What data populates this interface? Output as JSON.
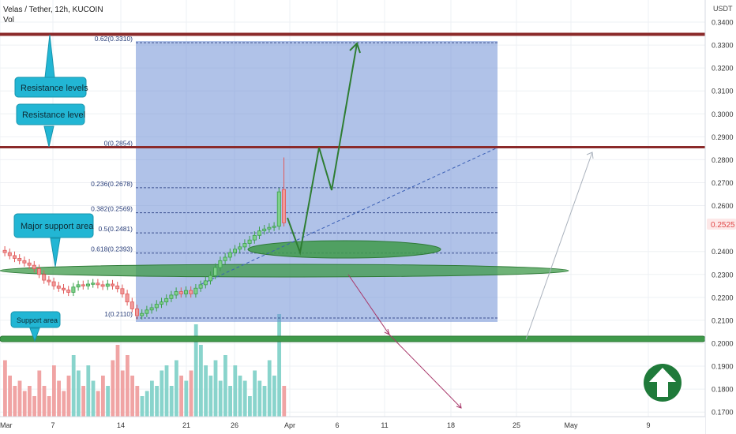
{
  "header": {
    "symbol_line": "Velas / Tether, 12h, KUCOIN",
    "indicator": "Vol",
    "currency": "USDT"
  },
  "price_axis": {
    "ticks": [
      "0.3400",
      "0.3300",
      "0.3200",
      "0.3100",
      "0.3000",
      "0.2900",
      "0.2800",
      "0.2700",
      "0.2600",
      "0.2400",
      "0.2300",
      "0.2200",
      "0.2100",
      "0.2000",
      "0.1900",
      "0.1800",
      "0.1700"
    ],
    "current_price": "0.2525",
    "current_price_color": "#e04848"
  },
  "time_axis": {
    "ticks": [
      "Mar",
      "7",
      "14",
      "21",
      "26",
      "Apr",
      "6",
      "11",
      "18",
      "25",
      "May",
      "9"
    ]
  },
  "fibonacci": {
    "levels": [
      {
        "label": "0.62(0.3310)",
        "price": 0.331
      },
      {
        "label": "0(0.2854)",
        "price": 0.2854
      },
      {
        "label": "0.236(0.2678)",
        "price": 0.2678
      },
      {
        "label": "0.382(0.2569)",
        "price": 0.2569
      },
      {
        "label": "0.5(0.2481)",
        "price": 0.2481
      },
      {
        "label": "0.618(0.2393)",
        "price": 0.2393
      },
      {
        "label": "1(0.2110)",
        "price": 0.211
      }
    ]
  },
  "annotations": {
    "resistance_levels": "Resistance levels",
    "resistance_level": "Resistance level",
    "major_support": "Major support area",
    "support_area": "Support area"
  },
  "colors": {
    "background": "#ffffff",
    "grid": "#eef0f4",
    "fib_box": "#6f8fd6",
    "resistance": "#8b2a2a",
    "support": "#3f9a4a",
    "callout": "#22b6d4",
    "up_candle": "#3aa04a",
    "down_candle": "#e05a5a",
    "vol_up": "#7ccfc6",
    "vol_down": "#ee9a9a",
    "projection": "#2e7d32"
  },
  "chart_data": {
    "type": "candlestick",
    "title": "Velas / Tether, 12h, KUCOIN",
    "ylabel": "USDT",
    "ylim": [
      0.17,
      0.345
    ],
    "resistance_lines": [
      0.3345,
      0.2858
    ],
    "support_zones": [
      0.2315,
      0.2025
    ],
    "candles": [
      {
        "o": 0.2405,
        "c": 0.2395
      },
      {
        "o": 0.2395,
        "c": 0.2382
      },
      {
        "o": 0.2382,
        "c": 0.237
      },
      {
        "o": 0.237,
        "c": 0.236
      },
      {
        "o": 0.236,
        "c": 0.235
      },
      {
        "o": 0.235,
        "c": 0.234
      },
      {
        "o": 0.234,
        "c": 0.2325
      },
      {
        "o": 0.2325,
        "c": 0.23
      },
      {
        "o": 0.23,
        "c": 0.2275
      },
      {
        "o": 0.2275,
        "c": 0.2268
      },
      {
        "o": 0.2268,
        "c": 0.225
      },
      {
        "o": 0.225,
        "c": 0.224
      },
      {
        "o": 0.224,
        "c": 0.2232
      },
      {
        "o": 0.2232,
        "c": 0.2222
      },
      {
        "o": 0.2222,
        "c": 0.2245
      },
      {
        "o": 0.2245,
        "c": 0.2255
      },
      {
        "o": 0.2255,
        "c": 0.225
      },
      {
        "o": 0.225,
        "c": 0.2258
      },
      {
        "o": 0.2258,
        "c": 0.2262
      },
      {
        "o": 0.2262,
        "c": 0.2255
      },
      {
        "o": 0.2255,
        "c": 0.2248
      },
      {
        "o": 0.2248,
        "c": 0.2258
      },
      {
        "o": 0.2258,
        "c": 0.225
      },
      {
        "o": 0.225,
        "c": 0.2238
      },
      {
        "o": 0.2238,
        "c": 0.2215
      },
      {
        "o": 0.2215,
        "c": 0.218
      },
      {
        "o": 0.218,
        "c": 0.215
      },
      {
        "o": 0.215,
        "c": 0.212
      },
      {
        "o": 0.212,
        "c": 0.213
      },
      {
        "o": 0.213,
        "c": 0.2145
      },
      {
        "o": 0.2145,
        "c": 0.2155
      },
      {
        "o": 0.2155,
        "c": 0.217
      },
      {
        "o": 0.217,
        "c": 0.218
      },
      {
        "o": 0.218,
        "c": 0.2195
      },
      {
        "o": 0.2195,
        "c": 0.221
      },
      {
        "o": 0.221,
        "c": 0.2225
      },
      {
        "o": 0.2225,
        "c": 0.2215
      },
      {
        "o": 0.2215,
        "c": 0.223
      },
      {
        "o": 0.223,
        "c": 0.2215
      },
      {
        "o": 0.2215,
        "c": 0.224
      },
      {
        "o": 0.224,
        "c": 0.2255
      },
      {
        "o": 0.2255,
        "c": 0.2272
      },
      {
        "o": 0.2272,
        "c": 0.2295
      },
      {
        "o": 0.2295,
        "c": 0.233
      },
      {
        "o": 0.233,
        "c": 0.236
      },
      {
        "o": 0.236,
        "c": 0.2375
      },
      {
        "o": 0.2375,
        "c": 0.2395
      },
      {
        "o": 0.2395,
        "c": 0.241
      },
      {
        "o": 0.241,
        "c": 0.242
      },
      {
        "o": 0.242,
        "c": 0.2435
      },
      {
        "o": 0.2435,
        "c": 0.245
      },
      {
        "o": 0.245,
        "c": 0.247
      },
      {
        "o": 0.247,
        "c": 0.249
      },
      {
        "o": 0.249,
        "c": 0.2498
      },
      {
        "o": 0.2498,
        "c": 0.2505
      },
      {
        "o": 0.2505,
        "c": 0.251
      },
      {
        "o": 0.251,
        "c": 0.266
      },
      {
        "o": 0.267,
        "c": 0.2525
      }
    ],
    "volume_levels": [
      0.55,
      0.4,
      0.3,
      0.35,
      0.25,
      0.3,
      0.2,
      0.45,
      0.3,
      0.2,
      0.5,
      0.35,
      0.25,
      0.4,
      0.6,
      0.45,
      0.3,
      0.5,
      0.35,
      0.25,
      0.4,
      0.3,
      0.55,
      0.7,
      0.45,
      0.6,
      0.4,
      0.3,
      0.2,
      0.25,
      0.35,
      0.3,
      0.45,
      0.5,
      0.3,
      0.55,
      0.4,
      0.35,
      0.45,
      0.9,
      0.7,
      0.5,
      0.4,
      0.55,
      0.35,
      0.6,
      0.3,
      0.5,
      0.4,
      0.35,
      0.2,
      0.45,
      0.35,
      0.3,
      0.55,
      0.4,
      1.0,
      0.3
    ]
  }
}
